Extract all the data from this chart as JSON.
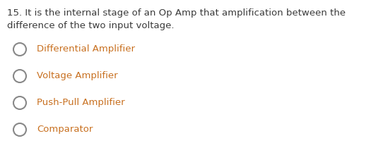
{
  "question_number": "15.",
  "question_text_line1": "It is the internal stage of an Op Amp that amplification between the",
  "question_text_line2": "difference of the two input voltage.",
  "options": [
    "Differential Amplifier",
    "Voltage Amplifier",
    "Push-Pull Amplifier",
    "Comparator"
  ],
  "bg_color": "#ffffff",
  "question_color": "#3a3a3a",
  "option_color": "#c87020",
  "question_fontsize": 9.5,
  "option_fontsize": 9.5,
  "circle_edge_color": "#888888",
  "circle_linewidth": 1.5,
  "figsize": [
    5.32,
    2.37
  ],
  "dpi": 100
}
